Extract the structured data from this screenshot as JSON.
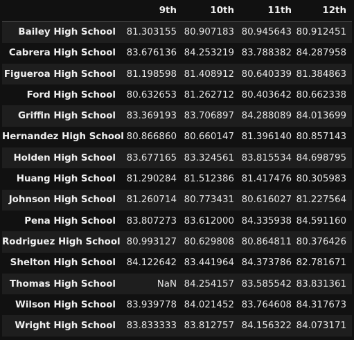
{
  "table": {
    "columns": [
      "",
      "9th",
      "10th",
      "11th",
      "12th"
    ],
    "rows": [
      {
        "school": "Bailey High School",
        "values": [
          "81.303155",
          "80.907183",
          "80.945643",
          "80.912451"
        ]
      },
      {
        "school": "Cabrera High School",
        "values": [
          "83.676136",
          "84.253219",
          "83.788382",
          "84.287958"
        ]
      },
      {
        "school": "Figueroa High School",
        "values": [
          "81.198598",
          "81.408912",
          "80.640339",
          "81.384863"
        ]
      },
      {
        "school": "Ford High School",
        "values": [
          "80.632653",
          "81.262712",
          "80.403642",
          "80.662338"
        ]
      },
      {
        "school": "Griffin High School",
        "values": [
          "83.369193",
          "83.706897",
          "84.288089",
          "84.013699"
        ]
      },
      {
        "school": "Hernandez High School",
        "values": [
          "80.866860",
          "80.660147",
          "81.396140",
          "80.857143"
        ]
      },
      {
        "school": "Holden High School",
        "values": [
          "83.677165",
          "83.324561",
          "83.815534",
          "84.698795"
        ]
      },
      {
        "school": "Huang High School",
        "values": [
          "81.290284",
          "81.512386",
          "81.417476",
          "80.305983"
        ]
      },
      {
        "school": "Johnson High School",
        "values": [
          "81.260714",
          "80.773431",
          "80.616027",
          "81.227564"
        ]
      },
      {
        "school": "Pena High School",
        "values": [
          "83.807273",
          "83.612000",
          "84.335938",
          "84.591160"
        ]
      },
      {
        "school": "Rodriguez High School",
        "values": [
          "80.993127",
          "80.629808",
          "80.864811",
          "80.376426"
        ]
      },
      {
        "school": "Shelton High School",
        "values": [
          "84.122642",
          "83.441964",
          "84.373786",
          "82.781671"
        ]
      },
      {
        "school": "Thomas High School",
        "values": [
          "NaN",
          "84.254157",
          "83.585542",
          "83.831361"
        ]
      },
      {
        "school": "Wilson High School",
        "values": [
          "83.939778",
          "84.021452",
          "83.764608",
          "84.317673"
        ]
      },
      {
        "school": "Wright High School",
        "values": [
          "83.833333",
          "83.812757",
          "84.156322",
          "84.073171"
        ]
      }
    ]
  },
  "colors": {
    "background": "#111111",
    "row_stripe": "#1e1e1e",
    "text": "#e8e8e8",
    "header_rule": "#5a5a5a"
  }
}
